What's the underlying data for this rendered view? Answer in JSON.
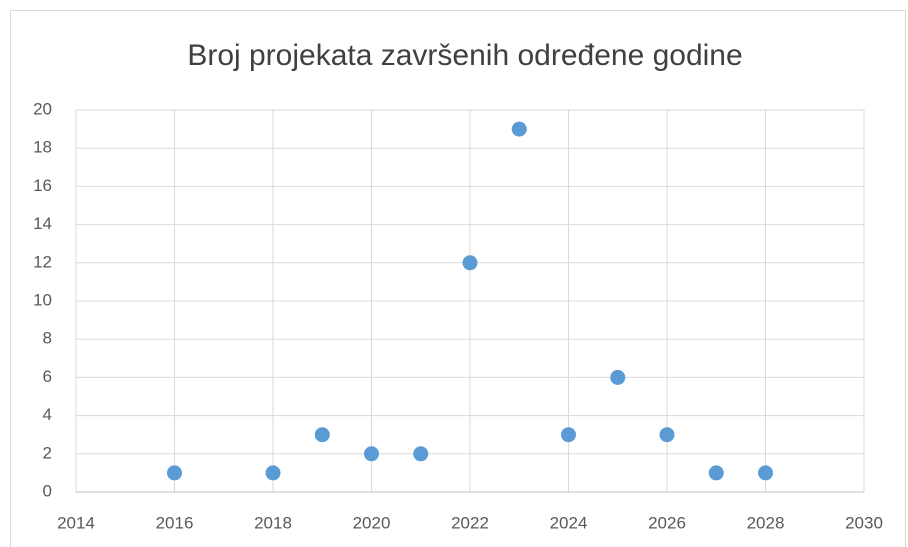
{
  "chart_data": {
    "type": "scatter",
    "title": "Broj projekata završenih određene godine",
    "x": [
      2016,
      2018,
      2019,
      2020,
      2021,
      2022,
      2023,
      2024,
      2025,
      2026,
      2027,
      2028
    ],
    "values": [
      1,
      1,
      3,
      2,
      2,
      12,
      19,
      3,
      6,
      3,
      1,
      1
    ],
    "color": "#5b9bd5",
    "xlim": [
      2014,
      2030
    ],
    "xticks": [
      2014,
      2016,
      2018,
      2020,
      2022,
      2024,
      2026,
      2028,
      2030
    ],
    "ylim": [
      0,
      20
    ],
    "yticks": [
      0,
      2,
      4,
      6,
      8,
      10,
      12,
      14,
      16,
      18,
      20
    ],
    "grid": true
  }
}
